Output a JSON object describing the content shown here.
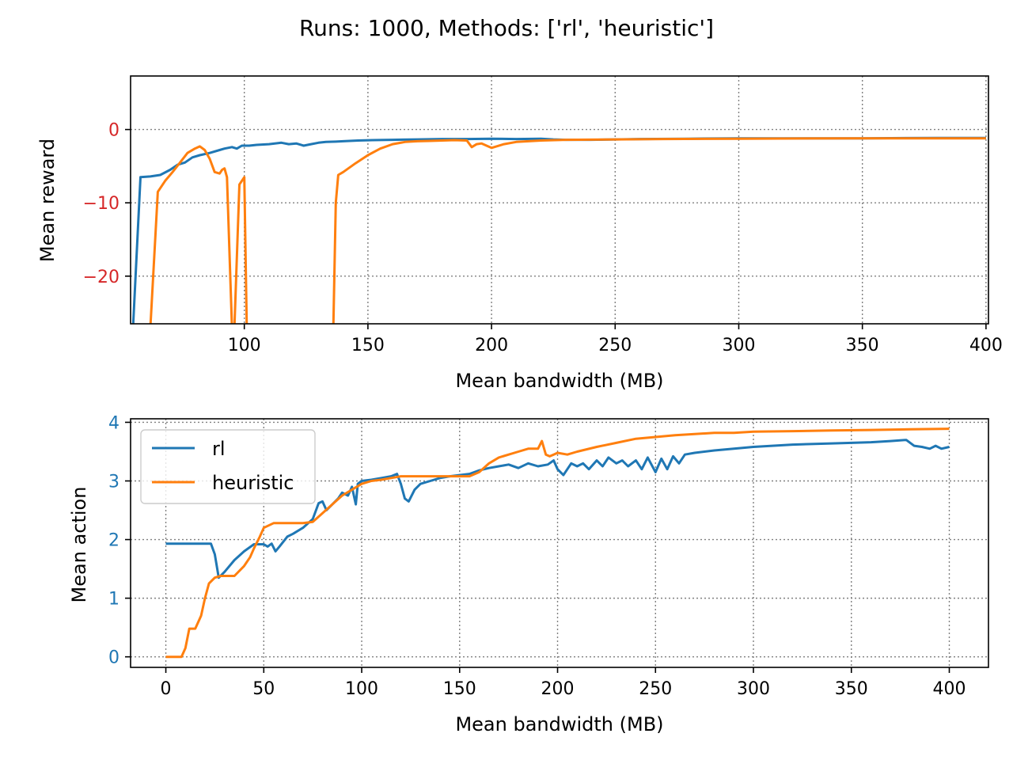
{
  "title": "Runs: 1000, Methods: ['rl', 'heuristic']",
  "colors": {
    "rl": "#1f77b4",
    "heuristic": "#ff7f0e",
    "reward_tick": "#d62728",
    "action_tick": "#1f77b4"
  },
  "chart_data": [
    {
      "type": "line",
      "xlabel": "Mean bandwidth (MB)",
      "ylabel": "Mean reward",
      "xlim": [
        54,
        401
      ],
      "ylim": [
        -26.5,
        7.3
      ],
      "xticks": [
        100,
        150,
        200,
        250,
        300,
        350,
        400
      ],
      "yticks": [
        -20,
        -10,
        0
      ],
      "ytick_labels": [
        "−20",
        "−10",
        "0"
      ],
      "grid": true,
      "series": [
        {
          "name": "rl",
          "x": [
            55,
            58,
            62,
            66,
            70,
            73,
            76,
            79,
            82,
            86,
            90,
            92,
            95,
            97,
            99,
            102,
            105,
            110,
            115,
            118,
            121,
            124,
            127,
            130,
            133,
            137,
            140,
            146,
            152,
            160,
            170,
            180,
            190,
            200,
            210,
            220,
            225,
            230,
            240,
            250,
            260,
            280,
            300,
            320,
            350,
            380,
            400
          ],
          "y": [
            -27,
            -6.5,
            -6.4,
            -6.2,
            -5.5,
            -4.8,
            -4.5,
            -3.8,
            -3.5,
            -3.2,
            -2.8,
            -2.6,
            -2.4,
            -2.6,
            -2.2,
            -2.2,
            -2.1,
            -2.0,
            -1.8,
            -2.0,
            -1.9,
            -2.2,
            -2.0,
            -1.8,
            -1.7,
            -1.65,
            -1.6,
            -1.5,
            -1.45,
            -1.4,
            -1.35,
            -1.3,
            -1.3,
            -1.25,
            -1.3,
            -1.25,
            -1.35,
            -1.4,
            -1.4,
            -1.35,
            -1.3,
            -1.25,
            -1.2,
            -1.2,
            -1.2,
            -1.15,
            -1.15
          ]
        },
        {
          "name": "heuristic",
          "x": [
            58,
            62,
            65,
            68,
            71,
            74,
            77,
            80,
            82,
            84,
            86,
            88,
            90,
            91,
            92,
            93,
            95,
            96,
            98,
            100,
            101,
            102,
            136,
            137,
            138,
            140,
            145,
            150,
            155,
            160,
            165,
            170,
            175,
            180,
            185,
            190,
            192,
            194,
            196,
            198,
            200,
            205,
            210,
            220,
            230,
            250,
            270,
            300,
            350,
            400
          ],
          "y": [
            -27,
            -27,
            -8.5,
            -7.0,
            -5.8,
            -4.5,
            -3.2,
            -2.6,
            -2.3,
            -2.8,
            -4.0,
            -5.8,
            -6.0,
            -5.5,
            -5.3,
            -6.5,
            -27,
            -27,
            -7.5,
            -6.5,
            -27,
            -27,
            -27,
            -10.0,
            -6.2,
            -5.8,
            -4.6,
            -3.5,
            -2.6,
            -2.0,
            -1.7,
            -1.6,
            -1.55,
            -1.5,
            -1.45,
            -1.5,
            -2.4,
            -2.0,
            -1.9,
            -2.2,
            -2.5,
            -2.0,
            -1.7,
            -1.5,
            -1.4,
            -1.35,
            -1.3,
            -1.25,
            -1.2,
            -1.2
          ]
        }
      ]
    },
    {
      "type": "line",
      "xlabel": "Mean bandwidth (MB)",
      "ylabel": "Mean action",
      "xlim": [
        -18,
        420
      ],
      "ylim": [
        -0.18,
        4.06
      ],
      "xticks": [
        0,
        50,
        100,
        150,
        200,
        250,
        300,
        350,
        400
      ],
      "yticks": [
        0,
        1,
        2,
        3,
        4
      ],
      "grid": true,
      "legend": "top-left",
      "legend_entries": [
        "rl",
        "heuristic"
      ],
      "series": [
        {
          "name": "rl",
          "x": [
            0,
            5,
            10,
            15,
            20,
            23,
            25,
            27,
            30,
            35,
            40,
            45,
            50,
            52,
            54,
            56,
            58,
            62,
            65,
            70,
            75,
            78,
            80,
            82,
            85,
            88,
            90,
            93,
            95,
            97,
            98,
            100,
            105,
            110,
            115,
            118,
            120,
            122,
            124,
            127,
            130,
            135,
            140,
            145,
            150,
            155,
            160,
            165,
            170,
            175,
            180,
            185,
            190,
            195,
            198,
            200,
            203,
            207,
            210,
            213,
            216,
            220,
            223,
            226,
            230,
            233,
            236,
            240,
            243,
            246,
            250,
            253,
            256,
            259,
            262,
            265,
            270,
            280,
            290,
            300,
            320,
            340,
            350,
            360,
            370,
            378,
            382,
            386,
            390,
            393,
            396,
            400
          ],
          "y": [
            1.93,
            1.93,
            1.93,
            1.93,
            1.93,
            1.93,
            1.75,
            1.35,
            1.45,
            1.65,
            1.8,
            1.92,
            1.92,
            1.88,
            1.93,
            1.8,
            1.88,
            2.05,
            2.1,
            2.2,
            2.35,
            2.62,
            2.65,
            2.5,
            2.6,
            2.7,
            2.8,
            2.75,
            2.9,
            2.6,
            2.95,
            3.0,
            3.02,
            3.05,
            3.08,
            3.12,
            2.95,
            2.7,
            2.65,
            2.85,
            2.95,
            3.0,
            3.05,
            3.08,
            3.1,
            3.12,
            3.18,
            3.22,
            3.25,
            3.28,
            3.22,
            3.3,
            3.25,
            3.28,
            3.35,
            3.2,
            3.1,
            3.3,
            3.25,
            3.3,
            3.2,
            3.35,
            3.25,
            3.4,
            3.3,
            3.35,
            3.25,
            3.35,
            3.2,
            3.4,
            3.15,
            3.38,
            3.2,
            3.42,
            3.3,
            3.45,
            3.48,
            3.52,
            3.55,
            3.58,
            3.62,
            3.64,
            3.65,
            3.66,
            3.68,
            3.7,
            3.6,
            3.58,
            3.55,
            3.6,
            3.55,
            3.58
          ]
        },
        {
          "name": "heuristic",
          "x": [
            0,
            3,
            5,
            8,
            10,
            12,
            15,
            18,
            20,
            22,
            25,
            28,
            30,
            35,
            40,
            43,
            45,
            48,
            50,
            55,
            60,
            65,
            70,
            75,
            80,
            85,
            90,
            95,
            100,
            105,
            110,
            115,
            120,
            125,
            130,
            140,
            150,
            155,
            160,
            165,
            170,
            175,
            180,
            185,
            190,
            192,
            194,
            196,
            198,
            200,
            205,
            210,
            220,
            230,
            240,
            250,
            260,
            270,
            280,
            290,
            300,
            320,
            340,
            360,
            380,
            400
          ],
          "y": [
            0.0,
            0.0,
            0.0,
            0.0,
            0.15,
            0.48,
            0.48,
            0.7,
            1.0,
            1.25,
            1.35,
            1.38,
            1.38,
            1.38,
            1.55,
            1.7,
            1.85,
            2.05,
            2.2,
            2.28,
            2.28,
            2.28,
            2.28,
            2.3,
            2.45,
            2.6,
            2.75,
            2.85,
            2.95,
            3.0,
            3.02,
            3.05,
            3.08,
            3.08,
            3.08,
            3.08,
            3.08,
            3.08,
            3.15,
            3.3,
            3.4,
            3.45,
            3.5,
            3.55,
            3.55,
            3.68,
            3.45,
            3.42,
            3.45,
            3.48,
            3.45,
            3.5,
            3.58,
            3.65,
            3.72,
            3.75,
            3.78,
            3.8,
            3.82,
            3.82,
            3.84,
            3.85,
            3.86,
            3.87,
            3.88,
            3.89
          ]
        }
      ]
    }
  ]
}
